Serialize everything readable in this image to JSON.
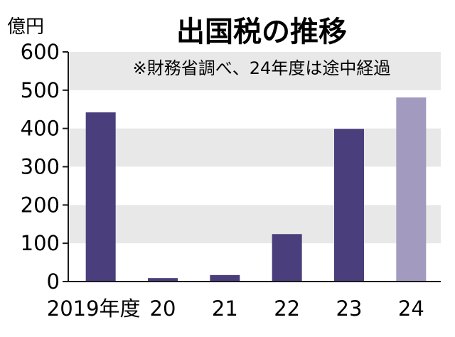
{
  "chart_data": {
    "type": "bar",
    "title": "出国税の推移",
    "subtitle": "※財務省調べ、24年度は途中経過",
    "unit_label": "億円",
    "categories": [
      "2019年度",
      "20",
      "21",
      "22",
      "23",
      "24"
    ],
    "values": [
      442,
      9,
      17,
      124,
      399,
      481
    ],
    "ylim": [
      0,
      600
    ],
    "yticks": [
      0,
      100,
      200,
      300,
      400,
      500,
      600
    ],
    "grid": "alternating horizontal bands",
    "colors": {
      "bar": "#4a3f7c",
      "bar_partial": "#a39bbf",
      "band": "#e8e8e8"
    },
    "partial_category": "24"
  }
}
